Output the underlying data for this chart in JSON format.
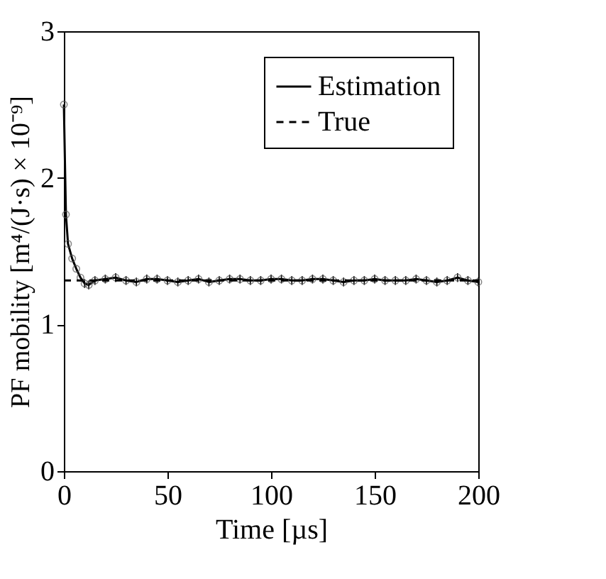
{
  "chart_data": {
    "type": "line",
    "xlabel": "Time [µs]",
    "ylabel": "PF mobility [m⁴/(J·s) × 10⁻⁹]",
    "xlim": [
      0,
      200
    ],
    "ylim": [
      0,
      3
    ],
    "xticks": [
      0,
      50,
      100,
      150,
      200
    ],
    "yticks": [
      0,
      1,
      2,
      3
    ],
    "grid": false,
    "legend": "top right",
    "series": [
      {
        "name": "Estimation",
        "color": "#000000",
        "marker": "circle",
        "line_style": "solid",
        "x": [
          0,
          1,
          2,
          4,
          6,
          8,
          10,
          12,
          15,
          20,
          25,
          30,
          35,
          40,
          45,
          50,
          55,
          60,
          65,
          70,
          75,
          80,
          85,
          90,
          95,
          100,
          105,
          110,
          115,
          120,
          125,
          130,
          135,
          140,
          145,
          150,
          155,
          160,
          165,
          170,
          175,
          180,
          185,
          190,
          195,
          200
        ],
        "values": [
          2.5,
          1.75,
          1.55,
          1.45,
          1.38,
          1.32,
          1.28,
          1.27,
          1.3,
          1.31,
          1.32,
          1.3,
          1.29,
          1.31,
          1.31,
          1.3,
          1.29,
          1.3,
          1.31,
          1.29,
          1.3,
          1.31,
          1.31,
          1.3,
          1.3,
          1.31,
          1.31,
          1.3,
          1.3,
          1.31,
          1.31,
          1.3,
          1.29,
          1.3,
          1.3,
          1.31,
          1.3,
          1.3,
          1.3,
          1.31,
          1.3,
          1.29,
          1.3,
          1.32,
          1.3,
          1.29
        ],
        "errors": [
          null,
          null,
          null,
          null,
          null,
          null,
          0.03,
          0.03,
          0.03,
          0.03,
          0.03,
          0.03,
          0.03,
          0.03,
          0.03,
          0.03,
          0.03,
          0.03,
          0.03,
          0.03,
          0.03,
          0.03,
          0.03,
          0.03,
          0.03,
          0.03,
          0.03,
          0.03,
          0.03,
          0.03,
          0.03,
          0.03,
          0.03,
          0.03,
          0.03,
          0.03,
          0.03,
          0.03,
          0.03,
          0.03,
          0.03,
          0.03,
          0.03,
          0.03,
          0.03,
          0.03
        ]
      },
      {
        "name": "True",
        "color": "#000000",
        "marker": "none",
        "line_style": "dashed",
        "x": [
          0,
          200
        ],
        "values": [
          1.3,
          1.3
        ]
      }
    ]
  }
}
